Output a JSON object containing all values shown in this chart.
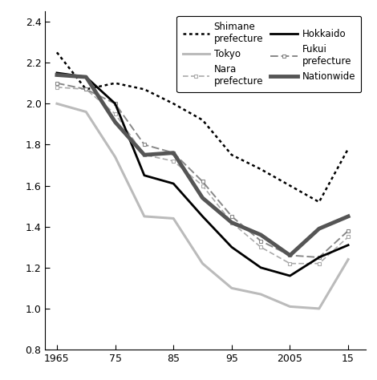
{
  "years": [
    1965,
    1970,
    1975,
    1980,
    1985,
    1990,
    1995,
    2000,
    2005,
    2010,
    2015
  ],
  "shimane": [
    2.25,
    2.07,
    2.1,
    2.07,
    2.0,
    1.92,
    1.75,
    1.68,
    1.6,
    1.52,
    1.78
  ],
  "nara": [
    2.08,
    2.07,
    1.95,
    1.75,
    1.72,
    1.6,
    1.42,
    1.3,
    1.22,
    1.22,
    1.35
  ],
  "fukui": [
    2.1,
    2.07,
    2.0,
    1.8,
    1.76,
    1.62,
    1.45,
    1.33,
    1.26,
    1.25,
    1.38
  ],
  "tokyo": [
    2.0,
    1.96,
    1.74,
    1.45,
    1.44,
    1.22,
    1.1,
    1.07,
    1.01,
    1.0,
    1.24
  ],
  "hokkaido": [
    2.15,
    2.13,
    2.0,
    1.65,
    1.61,
    1.45,
    1.3,
    1.2,
    1.16,
    1.25,
    1.31
  ],
  "nationwide": [
    2.14,
    2.13,
    1.91,
    1.75,
    1.76,
    1.54,
    1.42,
    1.36,
    1.26,
    1.39,
    1.45
  ],
  "shimane_color": "#000000",
  "nara_color": "#aaaaaa",
  "fukui_color": "#888888",
  "tokyo_color": "#bbbbbb",
  "hokkaido_color": "#000000",
  "nationwide_color": "#555555",
  "background": "#ffffff"
}
